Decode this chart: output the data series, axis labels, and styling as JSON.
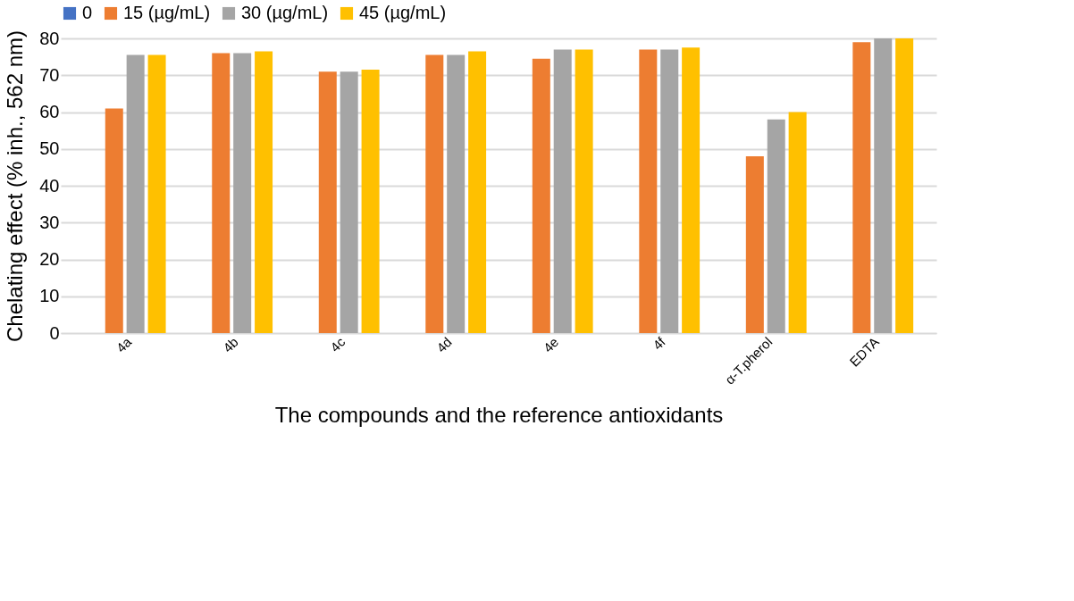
{
  "chart_data": {
    "type": "bar",
    "xlabel": "The compounds and the reference antioxidants",
    "ylabel": "Chelating effect (% inh., 562 nm)",
    "categories": [
      "4a",
      "4b",
      "4c",
      "4d",
      "4e",
      "4f",
      "α-T.pherol",
      "EDTA"
    ],
    "series": [
      {
        "name": "0",
        "color": "#4472c4",
        "values": [
          0,
          0,
          0,
          0,
          0,
          0,
          0,
          0
        ]
      },
      {
        "name": "15 (µg/mL)",
        "color": "#ed7d31",
        "values": [
          61,
          76,
          71,
          75.5,
          74.5,
          77,
          48,
          79
        ]
      },
      {
        "name": "30 (µg/mL)",
        "color": "#a5a5a5",
        "values": [
          75.5,
          76,
          71,
          75.5,
          77,
          77,
          58,
          80
        ]
      },
      {
        "name": "45 (µg/mL)",
        "color": "#ffc000",
        "values": [
          75.5,
          76.5,
          71.5,
          76.5,
          77,
          77.5,
          60,
          80
        ]
      }
    ],
    "ylim": [
      0,
      80
    ],
    "yticks": [
      0,
      10,
      20,
      30,
      40,
      50,
      60,
      70,
      80
    ],
    "grid": "y",
    "legend": "top"
  }
}
